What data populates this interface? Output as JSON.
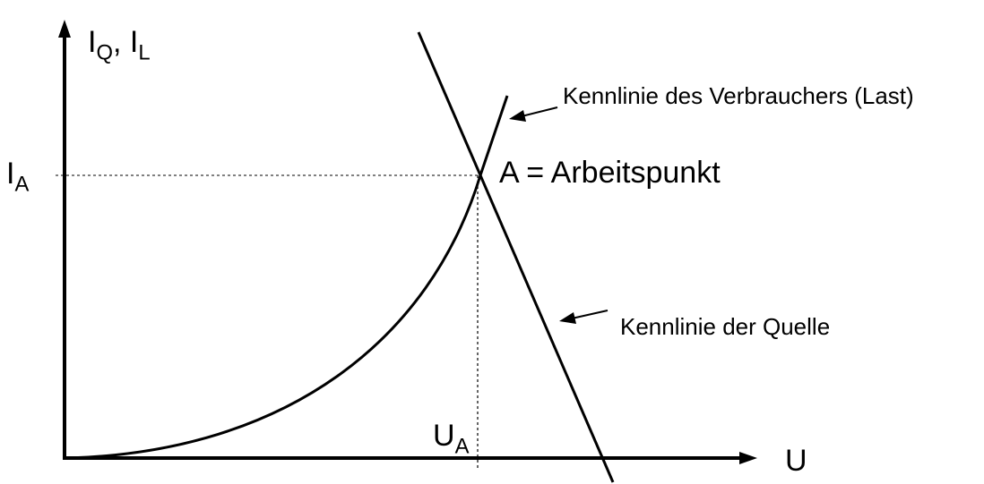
{
  "diagram": {
    "axes": {
      "y_label": {
        "main1": "I",
        "sub1": "Q",
        "sep": ", ",
        "main2": "I",
        "sub2": "L"
      },
      "x_label": "U"
    },
    "operating_point": {
      "current_label": {
        "main": "I",
        "sub": "A"
      },
      "voltage_label": {
        "main": "U",
        "sub": "A"
      },
      "text": "A = Arbeitspunkt"
    },
    "curves": {
      "load_label": "Kennlinie des Verbrauchers  (Last)",
      "source_label": "Kennlinie der Quelle"
    },
    "colors": {
      "ink": "#000000",
      "background": "#ffffff"
    }
  }
}
